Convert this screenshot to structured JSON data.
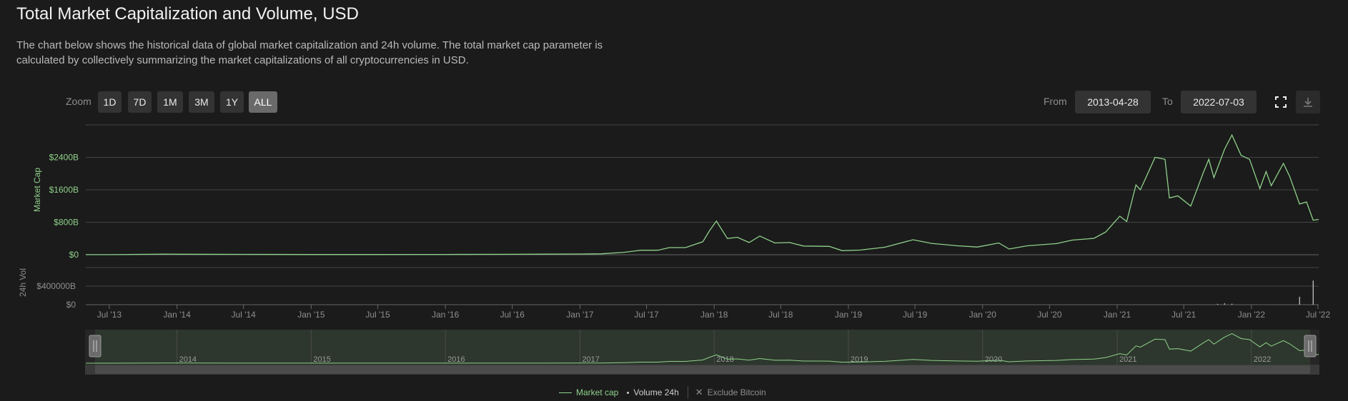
{
  "header": {
    "title": "Total Market Capitalization and Volume, USD",
    "description": "The chart below shows the historical data of global market capitalization and 24h volume. The total market cap parameter is calculated by collectively summarizing the market capitalizations of all cryptocurrencies in USD."
  },
  "toolbar": {
    "zoom_label": "Zoom",
    "zoom_options": [
      "1D",
      "7D",
      "1M",
      "3M",
      "1Y",
      "ALL"
    ],
    "zoom_selected": "ALL",
    "from_label": "From",
    "from_value": "2013-04-28",
    "to_label": "To",
    "to_value": "2022-07-03",
    "fullscreen_icon": "fullscreen-icon",
    "download_icon": "download-icon"
  },
  "legend": {
    "market_cap": "Market cap",
    "volume": "Volume 24h",
    "exclude_bitcoin": "Exclude Bitcoin",
    "exclude_icon": "close-icon"
  },
  "colors": {
    "market_cap": "#8fd18a",
    "volume": "#cfcfcf",
    "background": "#1b1b1b",
    "grid": "#444444",
    "axis_label": "#8fd18a"
  },
  "chart_data": {
    "type": "line",
    "main_yaxis": {
      "label": "Market Cap",
      "ticks": [
        "$0",
        "$800B",
        "$1600B",
        "$2400B"
      ],
      "tick_values": [
        0,
        800,
        1600,
        2400
      ],
      "ylim": [
        0,
        3200
      ],
      "unit": "B USD"
    },
    "volume_yaxis": {
      "label": "24h Vol",
      "ticks": [
        "$0",
        "$400000B"
      ],
      "tick_values": [
        0,
        400000
      ],
      "ylim": [
        0,
        800000
      ],
      "unit": "B USD"
    },
    "xaxis": {
      "ticks": [
        "Jul '13",
        "Jan '14",
        "Jul '14",
        "Jan '15",
        "Jul '15",
        "Jan '16",
        "Jul '16",
        "Jan '17",
        "Jul '17",
        "Jan '18",
        "Jul '18",
        "Jan '19",
        "Jul '19",
        "Jan '20",
        "Jul '20",
        "Jan '21",
        "Jul '21",
        "Jan '22",
        "Jul '22"
      ],
      "tick_dates": [
        "2013-07-01",
        "2014-01-01",
        "2014-07-01",
        "2015-01-01",
        "2015-07-01",
        "2016-01-01",
        "2016-07-01",
        "2017-01-01",
        "2017-07-01",
        "2018-01-01",
        "2018-07-01",
        "2019-01-01",
        "2019-07-01",
        "2020-01-01",
        "2020-07-01",
        "2021-01-01",
        "2021-07-01",
        "2022-01-01",
        "2022-07-01"
      ],
      "range": [
        "2013-04-28",
        "2022-07-03"
      ]
    },
    "navigator": {
      "year_labels": [
        "2014",
        "2015",
        "2016",
        "2017",
        "2018",
        "2019",
        "2020",
        "2021",
        "2022"
      ],
      "year_dates": [
        "2014-01-01",
        "2015-01-01",
        "2016-01-01",
        "2017-01-01",
        "2018-01-01",
        "2019-01-01",
        "2020-01-01",
        "2021-01-01",
        "2022-01-01"
      ]
    },
    "series": [
      {
        "name": "Market cap",
        "x": [
          "2013-04-28",
          "2013-07-01",
          "2013-12-01",
          "2014-01-01",
          "2014-07-01",
          "2015-01-01",
          "2015-07-01",
          "2016-01-01",
          "2016-07-01",
          "2017-01-01",
          "2017-03-01",
          "2017-05-01",
          "2017-06-15",
          "2017-08-01",
          "2017-09-01",
          "2017-10-15",
          "2017-12-01",
          "2017-12-20",
          "2018-01-07",
          "2018-02-06",
          "2018-03-05",
          "2018-04-06",
          "2018-05-05",
          "2018-06-15",
          "2018-07-25",
          "2018-09-01",
          "2018-11-10",
          "2018-12-15",
          "2019-02-01",
          "2019-04-10",
          "2019-06-26",
          "2019-08-15",
          "2019-10-25",
          "2019-12-18",
          "2020-02-14",
          "2020-03-13",
          "2020-05-01",
          "2020-07-20",
          "2020-09-01",
          "2020-10-30",
          "2020-12-01",
          "2021-01-08",
          "2021-01-27",
          "2021-02-21",
          "2021-03-05",
          "2021-04-14",
          "2021-05-11",
          "2021-05-23",
          "2021-06-15",
          "2021-07-20",
          "2021-08-23",
          "2021-09-07",
          "2021-09-21",
          "2021-10-20",
          "2021-11-09",
          "2021-12-04",
          "2021-12-27",
          "2022-01-24",
          "2022-02-10",
          "2022-02-24",
          "2022-03-29",
          "2022-04-15",
          "2022-05-12",
          "2022-05-31",
          "2022-06-18",
          "2022-07-03"
        ],
        "values": [
          1.5,
          1.2,
          15,
          12,
          8,
          5,
          4.5,
          7,
          10,
          17,
          22,
          60,
          110,
          110,
          175,
          175,
          320,
          600,
          830,
          400,
          430,
          300,
          460,
          290,
          300,
          215,
          205,
          100,
          115,
          185,
          370,
          280,
          220,
          190,
          290,
          140,
          220,
          275,
          360,
          405,
          560,
          950,
          820,
          1720,
          1600,
          2400,
          2350,
          1400,
          1450,
          1200,
          2020,
          2350,
          1900,
          2600,
          2950,
          2450,
          2350,
          1630,
          2050,
          1700,
          2250,
          1930,
          1250,
          1300,
          850,
          870
        ]
      },
      {
        "name": "Volume 24h",
        "x": [
          "2021-10-01",
          "2021-10-20",
          "2021-11-09",
          "2022-05-12",
          "2022-06-18"
        ],
        "values": [
          18000,
          30000,
          20000,
          170000,
          520000
        ]
      }
    ]
  }
}
